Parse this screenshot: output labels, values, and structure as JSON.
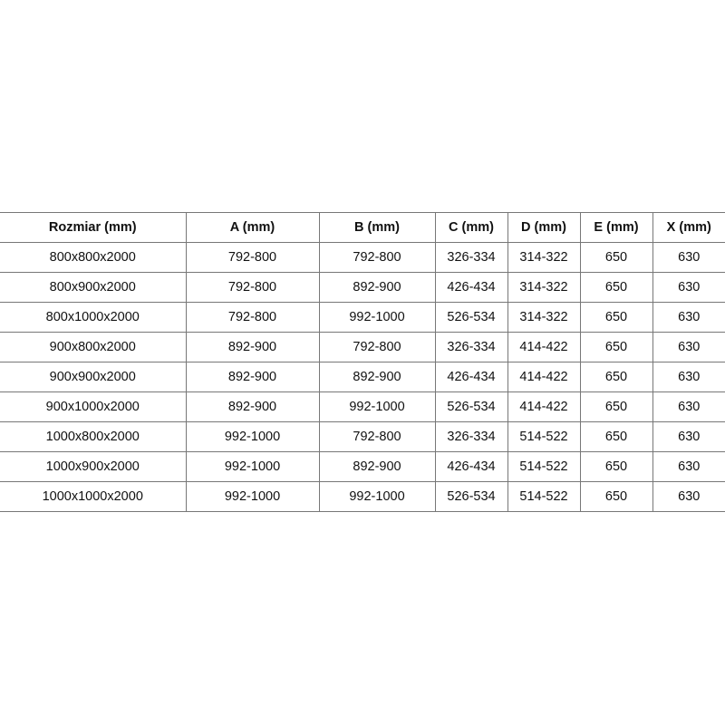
{
  "headers": [
    "Rozmiar (mm)",
    "A (mm)",
    "B (mm)",
    "C (mm)",
    "D (mm)",
    "E (mm)",
    "X (mm)"
  ],
  "rows": [
    [
      "800x800x2000",
      "792-800",
      "792-800",
      "326-334",
      "314-322",
      "650",
      "630"
    ],
    [
      "800x900x2000",
      "792-800",
      "892-900",
      "426-434",
      "314-322",
      "650",
      "630"
    ],
    [
      "800x1000x2000",
      "792-800",
      "992-1000",
      "526-534",
      "314-322",
      "650",
      "630"
    ],
    [
      "900x800x2000",
      "892-900",
      "792-800",
      "326-334",
      "414-422",
      "650",
      "630"
    ],
    [
      "900x900x2000",
      "892-900",
      "892-900",
      "426-434",
      "414-422",
      "650",
      "630"
    ],
    [
      "900x1000x2000",
      "892-900",
      "992-1000",
      "526-534",
      "414-422",
      "650",
      "630"
    ],
    [
      "1000x800x2000",
      "992-1000",
      "792-800",
      "326-334",
      "514-522",
      "650",
      "630"
    ],
    [
      "1000x900x2000",
      "992-1000",
      "892-900",
      "426-434",
      "514-522",
      "650",
      "630"
    ],
    [
      "1000x1000x2000",
      "992-1000",
      "992-1000",
      "526-534",
      "514-522",
      "650",
      "630"
    ]
  ]
}
